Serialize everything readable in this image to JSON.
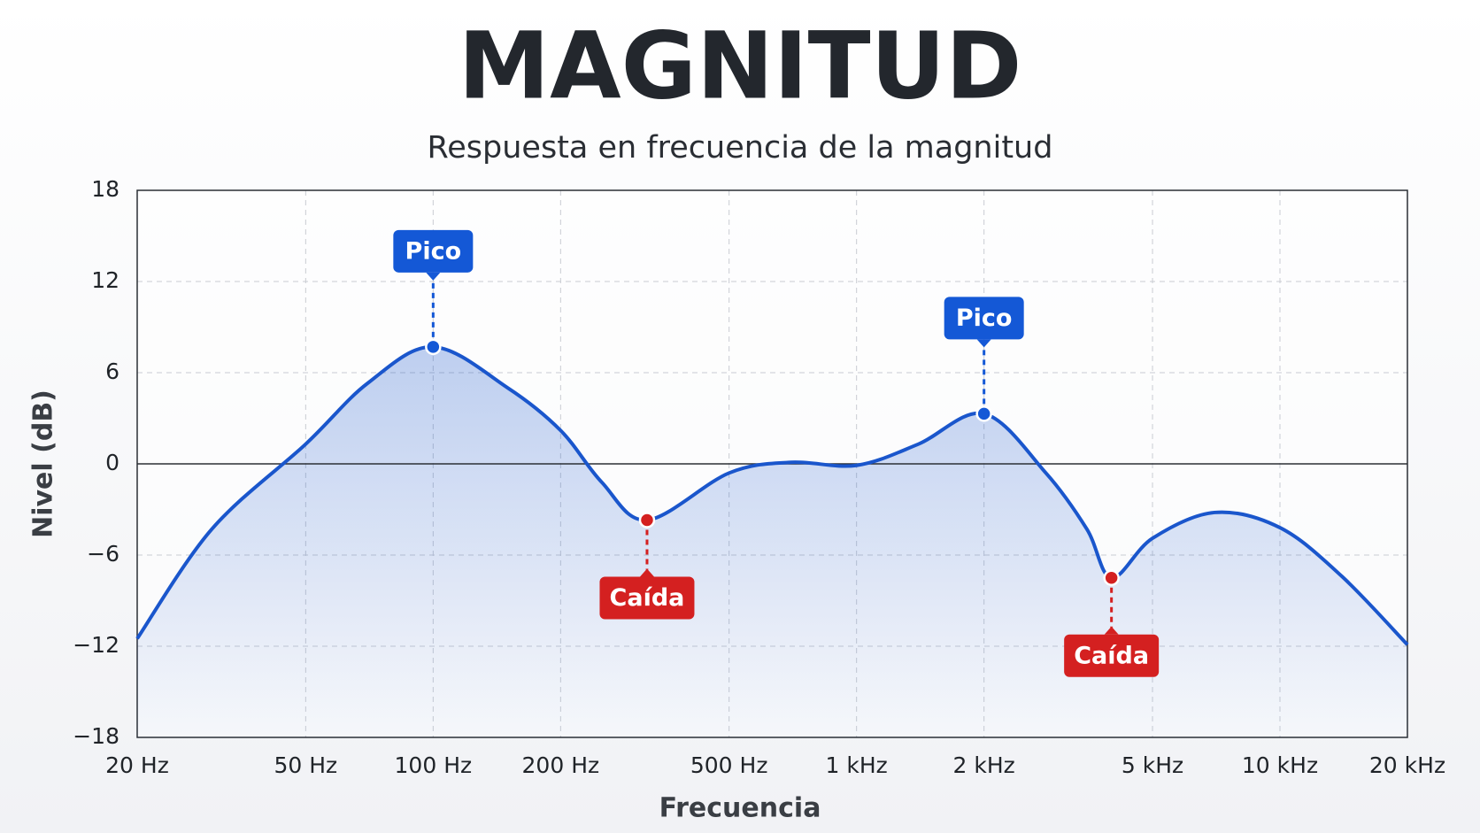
{
  "chart_data": {
    "type": "area",
    "title": "MAGNITUD",
    "subtitle": "Respuesta en frecuencia de la magnitud",
    "x_label": "Frecuencia",
    "y_label": "Nivel (dB)",
    "x_scale": "log",
    "xlim": [
      20,
      20000
    ],
    "xticks": [
      {
        "value": 20,
        "label": "20 Hz"
      },
      {
        "value": 50,
        "label": "50 Hz"
      },
      {
        "value": 100,
        "label": "100 Hz"
      },
      {
        "value": 200,
        "label": "200 Hz"
      },
      {
        "value": 500,
        "label": "500 Hz"
      },
      {
        "value": 1000,
        "label": "1 kHz"
      },
      {
        "value": 2000,
        "label": "2 kHz"
      },
      {
        "value": 5000,
        "label": "5 kHz"
      },
      {
        "value": 10000,
        "label": "10 kHz"
      },
      {
        "value": 20000,
        "label": "20 kHz"
      }
    ],
    "ylim": [
      -18,
      18
    ],
    "yticks": [
      {
        "value": -18,
        "label": "−18"
      },
      {
        "value": -12,
        "label": "−12"
      },
      {
        "value": -6,
        "label": "−6"
      },
      0,
      6,
      12,
      18
    ],
    "grid": true,
    "x": [
      20,
      30,
      50,
      70,
      100,
      150,
      200,
      250,
      320,
      500,
      700,
      1000,
      1400,
      2000,
      2800,
      3500,
      4000,
      5000,
      7000,
      10000,
      14000,
      20000
    ],
    "series": [
      {
        "color": "#1a56cc",
        "values": [
          -11.5,
          -4.3,
          1.3,
          5.3,
          7.7,
          5.0,
          2.2,
          -1.2,
          -3.7,
          -0.6,
          0.1,
          -0.1,
          1.3,
          3.3,
          -0.6,
          -4.3,
          -7.5,
          -4.9,
          -3.2,
          -4.2,
          -7.4,
          -11.9
        ]
      }
    ],
    "annotations": [
      {
        "label": "Pico",
        "x": 100,
        "y": 7.7,
        "color": "#1458d6"
      },
      {
        "label": "Caída",
        "x": 320,
        "y": -3.7,
        "color": "#d42020"
      },
      {
        "label": "Pico",
        "x": 2000,
        "y": 3.3,
        "color": "#1458d6"
      },
      {
        "label": "Caída",
        "x": 4000,
        "y": -7.5,
        "color": "#d42020"
      }
    ]
  }
}
